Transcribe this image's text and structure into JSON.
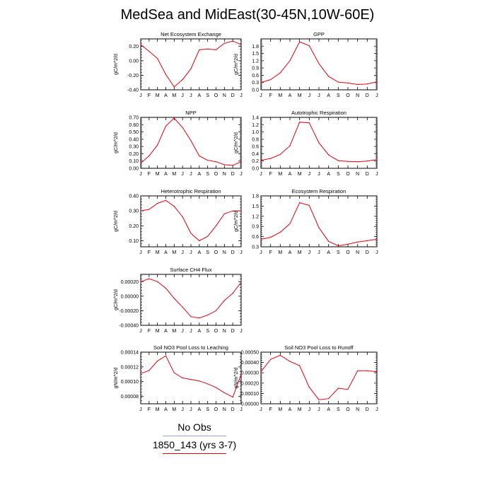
{
  "page": {
    "title": "MedSea and MidEast(30-45N,10W-60E)"
  },
  "colors": {
    "series": "#e8000b",
    "axis": "#000000",
    "obs_line": "#8fa8d8",
    "model_line": "#e8000b"
  },
  "legend": {
    "obs_label": "No Obs",
    "model_label": "1850_143 (yrs 3-7)"
  },
  "chart_data": [
    {
      "type": "line",
      "title": "Net Ecosystem Exchange",
      "ylabel": "gC/m^2/d",
      "x": [
        "J",
        "F",
        "M",
        "A",
        "M",
        "J",
        "J",
        "A",
        "S",
        "O",
        "N",
        "D",
        "J"
      ],
      "ylim": [
        -0.4,
        0.3
      ],
      "yticks": [
        "-0.40",
        "-0.20",
        "0.00",
        "0.20"
      ],
      "ytick_values": [
        -0.4,
        -0.2,
        0.0,
        0.2
      ],
      "series": [
        {
          "values": [
            0.22,
            0.13,
            0.03,
            -0.19,
            -0.36,
            -0.26,
            -0.11,
            0.15,
            0.16,
            0.15,
            0.24,
            0.27,
            0.22
          ]
        }
      ]
    },
    {
      "type": "line",
      "title": "GPP",
      "ylabel": "gC/m^2/d",
      "x": [
        "J",
        "F",
        "M",
        "A",
        "M",
        "J",
        "J",
        "A",
        "S",
        "O",
        "N",
        "D",
        "J"
      ],
      "ylim": [
        0.0,
        2.1
      ],
      "yticks": [
        "0.0",
        "0.3",
        "0.6",
        "0.9",
        "1.2",
        "1.5",
        "1.8"
      ],
      "ytick_values": [
        0.0,
        0.3,
        0.6,
        0.9,
        1.2,
        1.5,
        1.8
      ],
      "series": [
        {
          "values": [
            0.3,
            0.42,
            0.7,
            1.2,
            1.98,
            1.82,
            1.08,
            0.55,
            0.32,
            0.28,
            0.22,
            0.24,
            0.33
          ]
        }
      ]
    },
    {
      "type": "line",
      "title": "NPP",
      "ylabel": "gC/m^2/d",
      "x": [
        "J",
        "F",
        "M",
        "A",
        "M",
        "J",
        "J",
        "A",
        "S",
        "O",
        "N",
        "D",
        "J"
      ],
      "ylim": [
        0.0,
        0.7
      ],
      "yticks": [
        "0.00",
        "0.10",
        "0.20",
        "0.30",
        "0.40",
        "0.50",
        "0.60",
        "0.70"
      ],
      "ytick_values": [
        0.0,
        0.1,
        0.2,
        0.3,
        0.4,
        0.5,
        0.6,
        0.7
      ],
      "series": [
        {
          "values": [
            0.07,
            0.17,
            0.32,
            0.58,
            0.69,
            0.56,
            0.38,
            0.17,
            0.11,
            0.09,
            0.05,
            0.04,
            0.09
          ]
        }
      ]
    },
    {
      "type": "line",
      "title": "Autotrophic Respiration",
      "ylabel": "gC/m^2/d",
      "x": [
        "J",
        "F",
        "M",
        "A",
        "M",
        "J",
        "J",
        "A",
        "S",
        "O",
        "N",
        "D",
        "J"
      ],
      "ylim": [
        0.0,
        1.4
      ],
      "yticks": [
        "0.0",
        "0.2",
        "0.4",
        "0.6",
        "0.8",
        "1.0",
        "1.2",
        "1.4"
      ],
      "ytick_values": [
        0.0,
        0.2,
        0.4,
        0.6,
        0.8,
        1.0,
        1.2,
        1.4
      ],
      "series": [
        {
          "values": [
            0.22,
            0.27,
            0.38,
            0.62,
            1.27,
            1.25,
            0.7,
            0.37,
            0.21,
            0.19,
            0.18,
            0.2,
            0.24
          ]
        }
      ]
    },
    {
      "type": "line",
      "title": "Heterotrophic Respiration",
      "ylabel": "gC/m^2/d",
      "x": [
        "J",
        "F",
        "M",
        "A",
        "M",
        "J",
        "J",
        "A",
        "S",
        "O",
        "N",
        "D",
        "J"
      ],
      "ylim": [
        0.06,
        0.4
      ],
      "yticks": [
        "0.10",
        "0.20",
        "0.30",
        "0.40"
      ],
      "ytick_values": [
        0.1,
        0.2,
        0.3,
        0.4
      ],
      "series": [
        {
          "values": [
            0.3,
            0.31,
            0.35,
            0.37,
            0.33,
            0.26,
            0.15,
            0.1,
            0.13,
            0.2,
            0.28,
            0.3,
            0.3
          ]
        }
      ]
    },
    {
      "type": "line",
      "title": "Ecosystem Respiration",
      "ylabel": "gC/m^2/d",
      "x": [
        "J",
        "F",
        "M",
        "A",
        "M",
        "J",
        "J",
        "A",
        "S",
        "O",
        "N",
        "D",
        "J"
      ],
      "ylim": [
        0.3,
        1.8
      ],
      "yticks": [
        "0.3",
        "0.6",
        "0.9",
        "1.2",
        "1.5",
        "1.8"
      ],
      "ytick_values": [
        0.3,
        0.6,
        0.9,
        1.2,
        1.5,
        1.8
      ],
      "series": [
        {
          "values": [
            0.52,
            0.58,
            0.73,
            0.98,
            1.6,
            1.52,
            0.86,
            0.46,
            0.33,
            0.38,
            0.44,
            0.48,
            0.52
          ]
        }
      ]
    },
    {
      "type": "line",
      "title": "Surface CH4 Flux",
      "ylabel": "gC/m^2/d",
      "x": [
        "J",
        "F",
        "M",
        "A",
        "M",
        "J",
        "J",
        "A",
        "S",
        "O",
        "N",
        "D",
        "J"
      ],
      "ylim": [
        -0.0004,
        0.0003
      ],
      "yticks": [
        "-0.00040",
        "-0.00020",
        "0.00000",
        "0.00020"
      ],
      "ytick_values": [
        -0.0004,
        -0.0002,
        0.0,
        0.0002
      ],
      "series": [
        {
          "values": [
            0.0002,
            0.00024,
            0.0002,
            0.00011,
            -3e-05,
            -0.00015,
            -0.00028,
            -0.0003,
            -0.00026,
            -0.0002,
            -6e-05,
            4e-05,
            0.00019
          ]
        }
      ]
    },
    {
      "type": "line",
      "title": "Soil NO3 Pool Loss to Leaching",
      "ylabel": "gN/m^2/d",
      "x": [
        "J",
        "F",
        "M",
        "A",
        "M",
        "J",
        "J",
        "A",
        "S",
        "O",
        "N",
        "D",
        "J"
      ],
      "ylim": [
        7e-05,
        0.00014
      ],
      "yticks": [
        "0.00008",
        "0.00010",
        "0.00012",
        "0.00014"
      ],
      "ytick_values": [
        8e-05,
        0.0001,
        0.00012,
        0.00014
      ],
      "series": [
        {
          "values": [
            0.000111,
            0.000115,
            0.000128,
            0.000135,
            0.000112,
            0.000105,
            0.000103,
            0.000101,
            9.7e-05,
            9.2e-05,
            8.5e-05,
            7.9e-05,
            0.00011
          ]
        }
      ]
    },
    {
      "type": "line",
      "title": "Soil NO3 Pool Loss to Runoff",
      "ylabel": "gN/m^2/d",
      "x": [
        "J",
        "F",
        "M",
        "A",
        "M",
        "J",
        "J",
        "A",
        "S",
        "O",
        "N",
        "D",
        "J"
      ],
      "ylim": [
        0.0,
        0.0005
      ],
      "yticks": [
        "0.00000",
        "0.00010",
        "0.00020",
        "0.00030",
        "0.00040",
        "0.00050"
      ],
      "ytick_values": [
        0.0,
        0.0001,
        0.0002,
        0.0003,
        0.0004,
        0.0005
      ],
      "series": [
        {
          "values": [
            0.00031,
            0.00043,
            0.00047,
            0.00041,
            0.00037,
            0.00016,
            4e-05,
            5e-05,
            0.00015,
            0.00014,
            0.00032,
            0.00032,
            0.00031
          ]
        }
      ]
    }
  ]
}
